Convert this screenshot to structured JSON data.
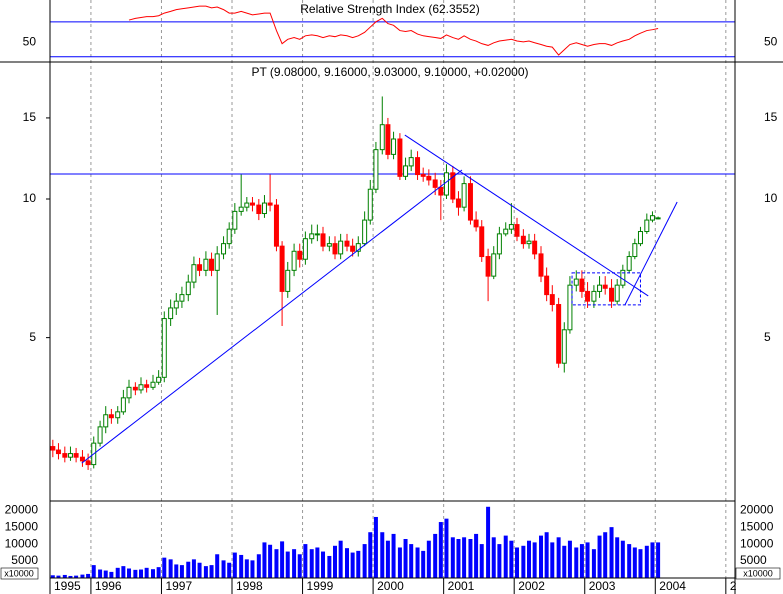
{
  "chart_data": {
    "type": "candlestick",
    "title": "PT (9.08000, 9.16000, 9.03000, 9.10000, +0.02000)",
    "log": true,
    "grid": true,
    "up_color": "#008000",
    "down_color": "#ff0000",
    "line_color": "#0000ff",
    "xlim": [
      1995.42,
      2005.13
    ],
    "xticks": [
      1995,
      1996,
      1997,
      1998,
      1999,
      2000,
      2001,
      2002,
      2003,
      2004,
      {
        "value": 2005,
        "label": "2"
      }
    ],
    "ylim": [
      2.22,
      19.84
    ],
    "yticks": [
      5,
      10,
      15
    ],
    "hlines": [
      11.33
    ],
    "trendlines": [
      {
        "x": [
          1995.87,
          2001.26
        ],
        "y": [
          2.67,
          11.56
        ]
      },
      {
        "x": [
          2000.45,
          2003.9
        ],
        "y": [
          13.77,
          6.16
        ]
      },
      {
        "x": [
          2003.57,
          2004.31
        ],
        "y": [
          5.89,
          9.85
        ]
      }
    ],
    "box": {
      "x": [
        2002.82,
        2003.79
      ],
      "y": [
        5.89,
        6.91
      ]
    },
    "x": [
      1995.46,
      1995.54,
      1995.63,
      1995.71,
      1995.79,
      1995.88,
      1995.96,
      1996.04,
      1996.13,
      1996.21,
      1996.29,
      1996.38,
      1996.46,
      1996.54,
      1996.63,
      1996.71,
      1996.79,
      1996.88,
      1996.96,
      1997.04,
      1997.13,
      1997.21,
      1997.29,
      1997.38,
      1997.46,
      1997.54,
      1997.63,
      1997.71,
      1997.79,
      1997.88,
      1997.96,
      1998.04,
      1998.13,
      1998.21,
      1998.29,
      1998.38,
      1998.46,
      1998.54,
      1998.63,
      1998.71,
      1998.79,
      1998.88,
      1998.96,
      1999.04,
      1999.13,
      1999.21,
      1999.29,
      1999.38,
      1999.46,
      1999.54,
      1999.63,
      1999.71,
      1999.79,
      1999.88,
      1999.96,
      2000.04,
      2000.13,
      2000.21,
      2000.29,
      2000.38,
      2000.46,
      2000.54,
      2000.63,
      2000.71,
      2000.79,
      2000.88,
      2000.96,
      2001.04,
      2001.13,
      2001.21,
      2001.29,
      2001.38,
      2001.46,
      2001.54,
      2001.63,
      2001.71,
      2001.79,
      2001.88,
      2001.96,
      2002.04,
      2002.13,
      2002.21,
      2002.29,
      2002.38,
      2002.46,
      2002.54,
      2002.63,
      2002.71,
      2002.79,
      2002.88,
      2002.96,
      2003.04,
      2003.13,
      2003.21,
      2003.29,
      2003.38,
      2003.46,
      2003.54,
      2003.63,
      2003.71,
      2003.79,
      2003.88,
      2003.96,
      2004.04
    ],
    "open": [
      2.9,
      2.85,
      2.8,
      2.75,
      2.8,
      2.75,
      2.7,
      2.65,
      2.95,
      3.2,
      3.4,
      3.35,
      3.45,
      3.7,
      3.9,
      3.85,
      3.95,
      3.9,
      4.0,
      4.1,
      5.5,
      5.8,
      6.0,
      6.2,
      6.6,
      7.2,
      7.0,
      7.4,
      7.0,
      7.6,
      8.0,
      8.6,
      9.4,
      9.6,
      9.8,
      9.7,
      9.3,
      9.8,
      9.7,
      7.9,
      6.3,
      7.0,
      7.7,
      7.4,
      8.2,
      8.4,
      8.4,
      7.9,
      8.0,
      7.6,
      8.1,
      7.9,
      7.7,
      8.0,
      9.0,
      10.5,
      12.8,
      14.5,
      12.5,
      13.5,
      11.2,
      11.8,
      12.3,
      11.3,
      11.2,
      11.0,
      10.6,
      10.2,
      11.4,
      10.0,
      9.6,
      10.8,
      9.0,
      8.7,
      7.5,
      6.8,
      7.6,
      8.4,
      8.6,
      8.8,
      8.3,
      8.0,
      8.1,
      7.6,
      6.8,
      6.2,
      5.9,
      4.4,
      5.2,
      6.5,
      6.7,
      6.3,
      6.0,
      6.3,
      6.5,
      6.4,
      6.0,
      6.5,
      7.0,
      7.5,
      8.0,
      8.5,
      9.0,
      9.08
    ],
    "high": [
      3.0,
      2.95,
      2.9,
      2.9,
      2.88,
      2.85,
      2.8,
      3.05,
      3.3,
      3.55,
      3.5,
      3.55,
      3.85,
      4.05,
      4.0,
      4.1,
      4.05,
      4.15,
      4.25,
      5.7,
      6.05,
      6.25,
      6.45,
      6.85,
      7.5,
      7.45,
      7.7,
      7.65,
      7.9,
      8.3,
      8.9,
      9.8,
      11.3,
      10.1,
      10.1,
      10.0,
      10.2,
      11.3,
      10.0,
      8.1,
      7.3,
      8.0,
      8.0,
      8.5,
      8.8,
      8.8,
      8.7,
      8.3,
      8.3,
      8.4,
      8.4,
      8.2,
      8.3,
      9.4,
      11.0,
      13.3,
      16.7,
      15.0,
      14.0,
      13.9,
      12.3,
      12.8,
      12.7,
      11.7,
      11.6,
      11.4,
      11.0,
      11.9,
      11.8,
      10.4,
      11.2,
      11.2,
      9.4,
      9.0,
      7.8,
      7.9,
      8.7,
      8.9,
      9.8,
      9.1,
      8.6,
      8.4,
      8.4,
      7.9,
      7.1,
      6.5,
      6.1,
      5.4,
      6.8,
      7.0,
      7.0,
      6.6,
      6.5,
      6.8,
      6.8,
      6.7,
      6.7,
      7.2,
      7.7,
      8.2,
      8.7,
      9.3,
      9.4,
      9.16
    ],
    "low": [
      2.75,
      2.72,
      2.68,
      2.7,
      2.68,
      2.62,
      2.58,
      2.6,
      2.9,
      3.1,
      3.25,
      3.25,
      3.4,
      3.6,
      3.75,
      3.78,
      3.8,
      3.85,
      3.95,
      4.0,
      5.3,
      5.6,
      5.8,
      6.0,
      6.4,
      6.8,
      6.8,
      6.8,
      5.6,
      7.4,
      7.8,
      8.4,
      9.2,
      9.4,
      9.4,
      9.0,
      9.1,
      9.4,
      7.7,
      5.3,
      6.1,
      6.8,
      7.1,
      7.2,
      8.0,
      8.1,
      7.7,
      7.7,
      7.4,
      7.4,
      7.7,
      7.5,
      7.5,
      7.9,
      8.8,
      10.3,
      12.5,
      12.2,
      12.2,
      11.0,
      11.0,
      11.5,
      11.0,
      10.9,
      10.7,
      10.2,
      9.0,
      10.0,
      9.8,
      9.2,
      9.4,
      8.8,
      8.5,
      7.3,
      6.0,
      6.7,
      7.4,
      8.3,
      8.4,
      8.1,
      7.8,
      7.8,
      7.4,
      6.6,
      6.0,
      5.7,
      4.3,
      4.2,
      5.1,
      6.3,
      6.1,
      5.8,
      5.8,
      6.1,
      6.2,
      5.8,
      5.9,
      6.4,
      6.9,
      7.4,
      7.9,
      8.4,
      8.9,
      9.03
    ],
    "close": [
      2.85,
      2.8,
      2.75,
      2.8,
      2.75,
      2.7,
      2.65,
      2.95,
      3.2,
      3.4,
      3.35,
      3.45,
      3.7,
      3.9,
      3.85,
      3.95,
      3.9,
      4.0,
      4.1,
      5.5,
      5.8,
      6.0,
      6.2,
      6.6,
      7.2,
      7.0,
      7.4,
      7.0,
      7.6,
      8.0,
      8.6,
      9.4,
      9.6,
      9.8,
      9.7,
      9.3,
      9.8,
      9.7,
      7.9,
      6.3,
      7.0,
      7.7,
      7.4,
      8.2,
      8.4,
      8.4,
      7.9,
      8.0,
      7.6,
      8.1,
      7.9,
      7.7,
      8.0,
      9.0,
      10.5,
      12.8,
      14.5,
      12.5,
      13.5,
      11.2,
      11.8,
      12.3,
      11.3,
      11.2,
      11.0,
      10.6,
      10.2,
      11.4,
      10.0,
      9.6,
      10.8,
      9.0,
      8.7,
      7.5,
      6.8,
      7.6,
      8.4,
      8.6,
      8.8,
      8.3,
      8.0,
      8.1,
      7.6,
      6.8,
      6.2,
      5.9,
      4.4,
      5.2,
      6.5,
      6.7,
      6.3,
      6.0,
      6.3,
      6.5,
      6.4,
      6.0,
      6.5,
      7.0,
      7.5,
      8.0,
      8.5,
      9.0,
      9.2,
      9.1
    ],
    "rsi": {
      "title": "Relative Strength Index (62.3552)",
      "color": "#ff0000",
      "level_color": "#0000ff",
      "ylim": [
        24,
        95
      ],
      "yticks": [
        50
      ],
      "levels": [
        70,
        30
      ],
      "values": [
        null,
        null,
        null,
        null,
        null,
        null,
        null,
        null,
        null,
        null,
        null,
        null,
        null,
        72,
        74,
        75,
        76,
        76,
        77,
        80,
        82,
        84,
        85,
        86,
        87,
        88,
        88,
        86,
        87,
        84,
        80,
        80,
        82,
        80,
        78,
        79,
        80,
        80,
        60,
        45,
        50,
        52,
        50,
        54,
        55,
        54,
        52,
        54,
        53,
        55,
        54,
        52,
        54,
        58,
        64,
        70,
        74,
        68,
        66,
        60,
        59,
        60,
        56,
        54,
        53,
        52,
        51,
        55,
        52,
        50,
        54,
        50,
        48,
        45,
        43,
        46,
        48,
        49,
        50,
        48,
        47,
        48,
        46,
        44,
        42,
        41,
        32,
        38,
        44,
        46,
        44,
        42,
        44,
        45,
        45,
        43,
        46,
        48,
        50,
        54,
        57,
        60,
        61,
        62.3552
      ]
    },
    "volume": {
      "color": "#0000ff",
      "unit": "x10000",
      "ylim": [
        0,
        23000
      ],
      "yticks": [
        5000,
        10000,
        15000,
        20000
      ],
      "values": [
        800,
        700,
        900,
        600,
        700,
        1000,
        1200,
        3800,
        2500,
        2200,
        1800,
        3000,
        3500,
        2800,
        2400,
        2500,
        3000,
        2600,
        3200,
        6000,
        5500,
        4000,
        3800,
        4800,
        5500,
        4500,
        3500,
        3800,
        7000,
        5200,
        4500,
        7500,
        6800,
        5500,
        5200,
        7000,
        10500,
        9800,
        8500,
        10800,
        7800,
        8500,
        7000,
        10000,
        8500,
        9000,
        7800,
        6500,
        9500,
        11000,
        8800,
        7500,
        8000,
        10000,
        13500,
        18000,
        13500,
        11000,
        13000,
        9000,
        11500,
        10000,
        9000,
        8000,
        11000,
        13000,
        16500,
        17500,
        12000,
        11500,
        12000,
        11500,
        13000,
        10000,
        21000,
        12000,
        10000,
        12500,
        11000,
        9000,
        9500,
        11000,
        10500,
        12500,
        13500,
        10500,
        12000,
        9500,
        11000,
        9000,
        10000,
        10500,
        8500,
        12500,
        13500,
        15000,
        12000,
        11000,
        10000,
        9000,
        8500,
        9500,
        10500,
        10500
      ]
    }
  }
}
